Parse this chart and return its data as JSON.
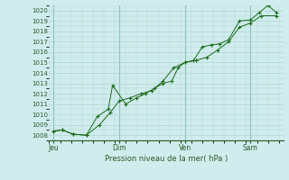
{
  "title": "Pression niveau de la mer( hPa )",
  "bg_color": "#d0ecec",
  "plot_bg_color": "#d0ecec",
  "grid_color": "#b0d4d4",
  "line_color": "#1a6b1a",
  "marker_color": "#1a6b1a",
  "vline_color": "#5a9a9a",
  "ylim": [
    1007.5,
    1020.5
  ],
  "yticks": [
    1008,
    1009,
    1010,
    1011,
    1012,
    1013,
    1014,
    1015,
    1016,
    1017,
    1018,
    1019,
    1020
  ],
  "xtick_labels": [
    "Jeu",
    "Dim",
    "Ven",
    "Sam"
  ],
  "xtick_positions": [
    0.0,
    3.0,
    6.0,
    9.0
  ],
  "vline_positions": [
    0.0,
    3.0,
    6.0,
    9.0
  ],
  "series1_x": [
    0.0,
    0.4,
    0.9,
    1.5,
    2.0,
    2.5,
    2.7,
    3.3,
    3.8,
    4.2,
    4.6,
    5.0,
    5.4,
    5.7,
    6.0,
    6.4,
    6.8,
    7.2,
    7.6,
    8.0,
    8.5,
    9.0,
    9.4,
    9.8,
    10.2
  ],
  "series1_y": [
    1008.4,
    1008.5,
    1008.1,
    1008.0,
    1009.8,
    1010.5,
    1012.8,
    1011.0,
    1011.6,
    1012.0,
    1012.5,
    1013.0,
    1013.2,
    1014.5,
    1015.0,
    1015.2,
    1016.5,
    1016.7,
    1016.8,
    1017.2,
    1019.0,
    1019.1,
    1019.8,
    1020.5,
    1019.8
  ],
  "series2_x": [
    0.0,
    0.4,
    0.9,
    1.5,
    2.1,
    2.6,
    3.0,
    3.5,
    4.0,
    4.5,
    5.0,
    5.5,
    6.0,
    6.5,
    7.0,
    7.5,
    8.0,
    8.5,
    9.0,
    9.5,
    10.2
  ],
  "series2_y": [
    1008.4,
    1008.5,
    1008.1,
    1008.0,
    1009.0,
    1010.2,
    1011.3,
    1011.6,
    1012.0,
    1012.3,
    1013.2,
    1014.5,
    1015.0,
    1015.2,
    1015.5,
    1016.2,
    1017.0,
    1018.4,
    1018.8,
    1019.5,
    1019.5
  ]
}
